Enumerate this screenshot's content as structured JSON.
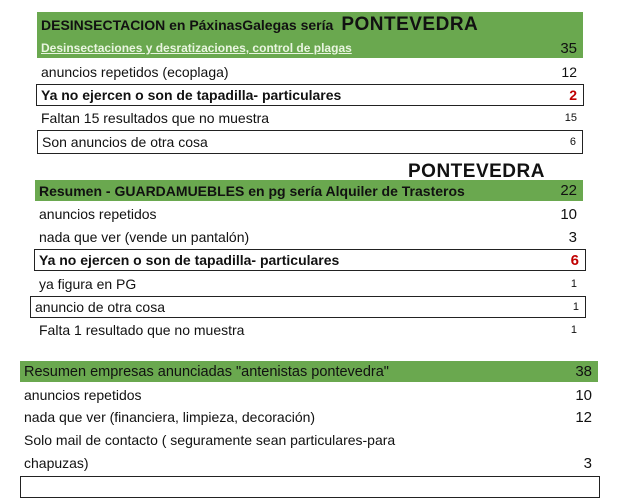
{
  "section1": {
    "title": "DESINSECTACION en PáxinasGalegas sería",
    "title_big": "PONTEVEDRA",
    "subtitle_link": "Desinsectaciones y desratizaciones, control de plagas",
    "subtitle_value": "35",
    "rows": [
      {
        "label": "anuncios repetidos (ecoplaga)",
        "value": "12"
      },
      {
        "label": "Ya no ejercen o son de tapadilla- particulares",
        "value": "2"
      },
      {
        "label": "Faltan 15 resultados que no muestra",
        "value": "15"
      },
      {
        "label": "Son anuncios de otra cosa",
        "value": "6"
      }
    ]
  },
  "section2": {
    "above_label": "PONTEVEDRA",
    "title": "Resumen - GUARDAMUEBLES en pg sería Alquiler de Trasteros",
    "title_value": "22",
    "rows": [
      {
        "label": "anuncios repetidos",
        "value": "10"
      },
      {
        "label": "nada que ver (vende un pantalón)",
        "value": "3"
      },
      {
        "label": "Ya no ejercen o son de tapadilla- particulares",
        "value": "6"
      },
      {
        "label": "ya figura en PG",
        "value": "1"
      },
      {
        "label": "anuncio de otra cosa",
        "value": "1"
      },
      {
        "label": "Falta 1 resultado que no muestra",
        "value": "1"
      }
    ]
  },
  "section3": {
    "title": "Resumen empresas anunciadas \"antenistas pontevedra\"",
    "title_value": "38",
    "rows": [
      {
        "label": "anuncios repetidos",
        "value": "10"
      },
      {
        "label": "nada que ver (financiera, limpieza, decoración)",
        "value": "12"
      },
      {
        "label": "Solo mail de contacto ( seguramente sean particulares-para",
        "value": ""
      },
      {
        "label": "chapuzas)",
        "value": "3"
      }
    ]
  },
  "colors": {
    "header_green": "#6aa84f",
    "highlight_red": "#c00000"
  }
}
